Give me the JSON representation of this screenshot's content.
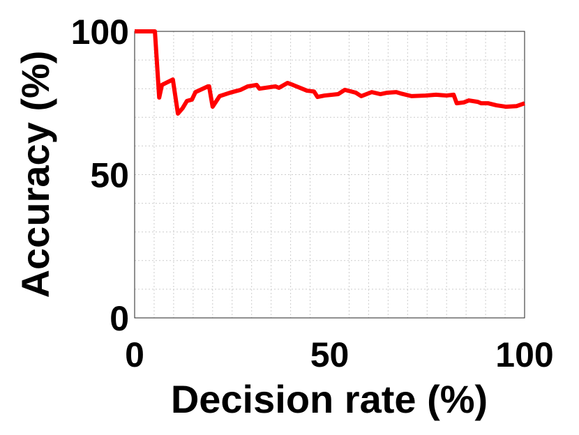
{
  "chart_data": {
    "type": "line",
    "x_label": "Decision rate (%)",
    "y_label": "Accuracy (%)",
    "xlim": [
      0,
      100
    ],
    "ylim": [
      0,
      100
    ],
    "xticks": [
      0,
      50,
      100
    ],
    "yticks": [
      0,
      50,
      100
    ],
    "xminorticks": [
      5,
      10,
      15,
      20,
      25,
      30,
      35,
      40,
      45,
      55,
      60,
      65,
      70,
      75,
      80,
      85,
      90,
      95
    ],
    "yminorticks": [
      10,
      20,
      30,
      40,
      60,
      70,
      80,
      90
    ],
    "grid": true,
    "series": [
      {
        "color": "#ff0000",
        "x": [
          0,
          5.2,
          6.3,
          7,
          9.8,
          11.1,
          12.3,
          13.4,
          14.7,
          15.6,
          18.8,
          19.1,
          20,
          21.8,
          24.5,
          27.2,
          29,
          31.3,
          32,
          36.1,
          37,
          39.2,
          40.6,
          44.2,
          46,
          46.9,
          48.7,
          52.2,
          53.9,
          56.7,
          58.1,
          60.8,
          63,
          64.8,
          67.1,
          68.3,
          71,
          74.6,
          77.3,
          80,
          81.8,
          82.6,
          84.4,
          85.7,
          88,
          88.9,
          90.7,
          92.8,
          95.2,
          97.9,
          100
        ],
        "values": [
          100,
          100,
          76.9,
          81.3,
          83.2,
          71.3,
          73.2,
          75.7,
          76.2,
          78.8,
          80.8,
          80.8,
          73.7,
          77.4,
          78.6,
          79.6,
          80.8,
          81.3,
          80,
          80.8,
          80.3,
          82,
          81.3,
          79.3,
          79,
          77.1,
          77.6,
          78.1,
          79.6,
          78.6,
          77.4,
          78.8,
          78.1,
          78.6,
          78.8,
          78.3,
          77.4,
          77.6,
          77.9,
          77.6,
          77.9,
          74.9,
          75.2,
          75.9,
          75.4,
          74.9,
          74.9,
          74.2,
          73.7,
          73.9,
          74.9
        ]
      }
    ]
  }
}
